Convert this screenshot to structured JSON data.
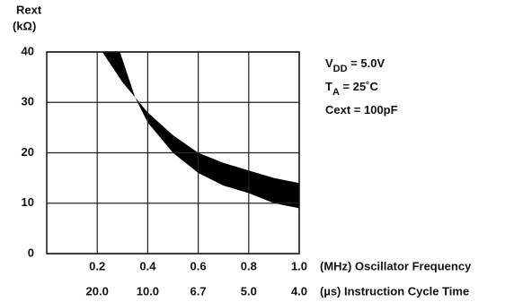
{
  "chart_data": {
    "type": "band",
    "y_label_lines": [
      "Rext",
      "(kΩ)"
    ],
    "x_label": "(MHz) Oscillator  Frequency",
    "x2_label": "(µs) Instruction Cycle Time",
    "xlim": [
      0,
      1.0
    ],
    "ylim": [
      0,
      40
    ],
    "xticks": [
      0.2,
      0.4,
      0.6,
      0.8,
      {
        "value": 1.0,
        "label": "1.0"
      }
    ],
    "x2ticks": [
      "20.0",
      "10.0",
      "6.7",
      "5.0",
      "4.0"
    ],
    "yticks": [
      0,
      10,
      20,
      30,
      40
    ],
    "grid": true,
    "color": "#000000",
    "series": [
      {
        "name": "upper",
        "x": [
          0.22,
          0.3,
          0.4,
          0.5,
          0.6,
          0.7,
          0.8,
          0.9,
          1.0
        ],
        "values": [
          40,
          34,
          28,
          23.5,
          20,
          18,
          16.5,
          15,
          14
        ]
      },
      {
        "name": "lower",
        "x": [
          0.29,
          0.35,
          0.4,
          0.5,
          0.6,
          0.7,
          0.8,
          0.9,
          1.0
        ],
        "values": [
          40,
          31,
          26,
          20,
          16,
          13.5,
          12,
          10,
          9
        ]
      }
    ],
    "annotations": [
      {
        "main": "V",
        "sub": "DD",
        "rest": " = 5.0V"
      },
      {
        "main": "T",
        "sub": "A",
        "rest": " = 25˚C"
      },
      {
        "main": "Cext = 100pF",
        "sub": "",
        "rest": ""
      }
    ]
  }
}
